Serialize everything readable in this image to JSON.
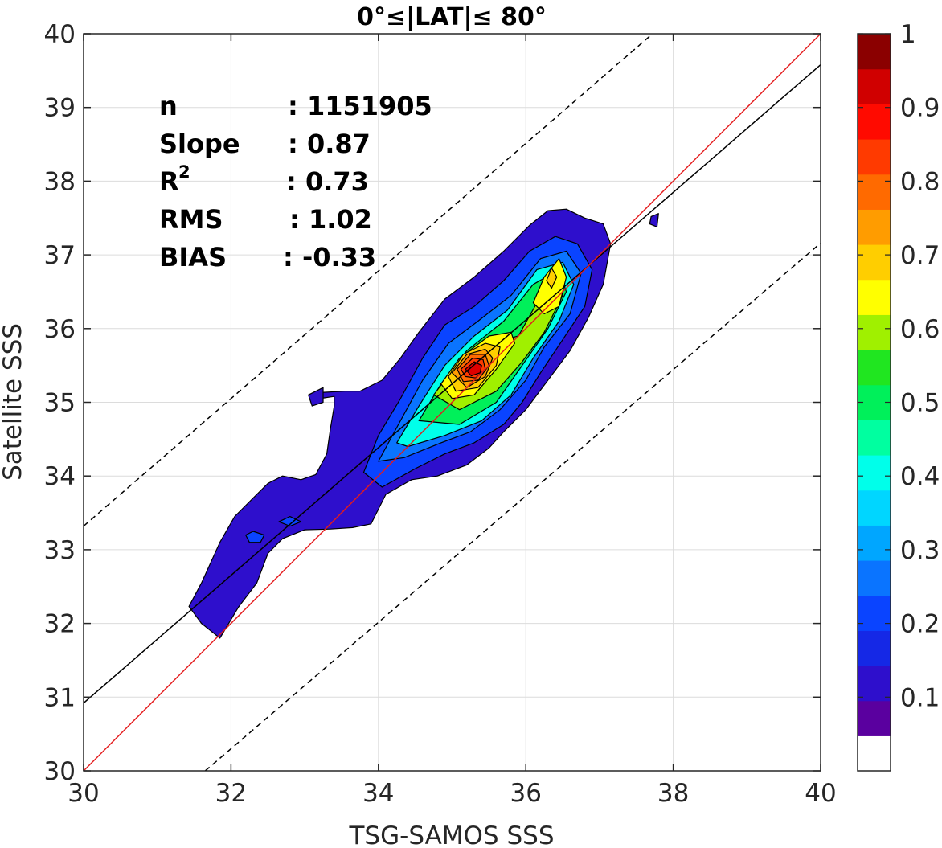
{
  "chart_data": {
    "type": "contour",
    "title": "0°≤|LAT|≤ 80°",
    "xlabel": "TSG-SAMOS SSS",
    "ylabel": "Satellite SSS",
    "xlim": [
      30,
      40
    ],
    "ylim": [
      30,
      40
    ],
    "xticks": [
      30,
      32,
      34,
      36,
      38,
      40
    ],
    "yticks": [
      30,
      31,
      32,
      33,
      34,
      35,
      36,
      37,
      38,
      39,
      40
    ],
    "grid": true,
    "stats": [
      {
        "label": "n",
        "value": ": 1151905"
      },
      {
        "label": "Slope",
        "value": ": 0.87"
      },
      {
        "label": "R",
        "sup": "2",
        "value": ": 0.73"
      },
      {
        "label": "RMS",
        "value": ": 1.02"
      },
      {
        "label": "BIAS",
        "value": ": -0.33"
      }
    ],
    "lines": {
      "identity": {
        "color": "#e41a1c",
        "p1": [
          30,
          30
        ],
        "p2": [
          40,
          40
        ]
      },
      "fit": {
        "color": "#000000",
        "p1": [
          30,
          30.92
        ],
        "p2": [
          40,
          39.58
        ]
      },
      "upper_bound": {
        "color": "#000000",
        "dash": true,
        "p1": [
          30,
          33.32
        ],
        "p2": [
          37.72,
          40
        ]
      },
      "lower_bound": {
        "color": "#000000",
        "dash": true,
        "p1": [
          31.65,
          30
        ],
        "p2": [
          40,
          37.16
        ]
      }
    },
    "density_peak": {
      "x": 35.3,
      "y": 35.45,
      "value": 0.9
    },
    "secondary_peak": {
      "x": 36.35,
      "y": 36.7,
      "value": 0.65
    },
    "colorbar": {
      "min": 0,
      "max": 1,
      "tick_labels": [
        "1",
        "0.9",
        "0.8",
        "0.7",
        "0.6",
        "0.5",
        "0.4",
        "0.3",
        "0.2",
        "0.1"
      ],
      "tick_values": [
        1,
        0.9,
        0.8,
        0.7,
        0.6,
        0.5,
        0.4,
        0.3,
        0.2,
        0.1
      ],
      "colors": [
        "#ffffff",
        "#5a009f",
        "#2e0fcc",
        "#1528e6",
        "#0a44ff",
        "#0a74ff",
        "#00a6ff",
        "#00d6ff",
        "#00ffea",
        "#00ffa0",
        "#00f05a",
        "#20e620",
        "#a0f000",
        "#ffff00",
        "#ffce00",
        "#ff9c00",
        "#ff6a00",
        "#ff3a00",
        "#ff0a00",
        "#d00000",
        "#8b0000"
      ]
    },
    "contours": [
      {
        "level": 0.05,
        "color": "#2e0fcc",
        "points": [
          [
            31.43,
            32.23
          ],
          [
            31.6,
            32.55
          ],
          [
            31.85,
            33.1
          ],
          [
            32.05,
            33.45
          ],
          [
            32.3,
            33.7
          ],
          [
            32.5,
            33.9
          ],
          [
            32.7,
            34.0
          ],
          [
            32.95,
            33.95
          ],
          [
            33.15,
            34.02
          ],
          [
            33.3,
            34.3
          ],
          [
            33.35,
            34.65
          ],
          [
            33.4,
            34.95
          ],
          [
            33.4,
            35.08
          ],
          [
            33.2,
            35.05
          ],
          [
            33.15,
            35.13
          ],
          [
            33.55,
            35.15
          ],
          [
            33.75,
            35.15
          ],
          [
            34.05,
            35.3
          ],
          [
            34.3,
            35.6
          ],
          [
            34.55,
            35.95
          ],
          [
            34.9,
            36.4
          ],
          [
            35.3,
            36.7
          ],
          [
            35.7,
            37.05
          ],
          [
            36.05,
            37.4
          ],
          [
            36.3,
            37.6
          ],
          [
            36.55,
            37.62
          ],
          [
            36.8,
            37.5
          ],
          [
            37.05,
            37.42
          ],
          [
            37.15,
            37.15
          ],
          [
            37.05,
            36.6
          ],
          [
            36.85,
            36.15
          ],
          [
            36.6,
            35.7
          ],
          [
            36.3,
            35.3
          ],
          [
            36.0,
            34.9
          ],
          [
            35.7,
            34.6
          ],
          [
            35.5,
            34.38
          ],
          [
            35.2,
            34.15
          ],
          [
            34.8,
            34.0
          ],
          [
            34.45,
            33.95
          ],
          [
            34.1,
            33.75
          ],
          [
            33.9,
            33.35
          ],
          [
            33.65,
            33.3
          ],
          [
            33.35,
            33.28
          ],
          [
            33.0,
            33.27
          ],
          [
            32.7,
            33.15
          ],
          [
            32.5,
            32.95
          ],
          [
            32.35,
            32.55
          ],
          [
            32.1,
            32.22
          ],
          [
            31.85,
            31.8
          ],
          [
            31.6,
            32.0
          ],
          [
            31.43,
            32.23
          ]
        ]
      },
      {
        "level": 0.05,
        "color": "#2e0fcc",
        "points": [
          [
            33.05,
            35.1
          ],
          [
            33.25,
            35.2
          ],
          [
            33.25,
            35.0
          ],
          [
            33.1,
            34.95
          ],
          [
            33.05,
            35.1
          ]
        ]
      },
      {
        "level": 0.05,
        "color": "#2e0fcc",
        "points": [
          [
            37.7,
            37.52
          ],
          [
            37.8,
            37.56
          ],
          [
            37.78,
            37.38
          ],
          [
            37.68,
            37.42
          ],
          [
            37.7,
            37.52
          ]
        ]
      },
      {
        "level": 0.15,
        "color": "#0a44ff",
        "points": [
          [
            33.8,
            34.05
          ],
          [
            34.0,
            34.55
          ],
          [
            34.3,
            35.05
          ],
          [
            34.6,
            35.6
          ],
          [
            34.9,
            36.05
          ],
          [
            35.3,
            36.3
          ],
          [
            35.7,
            36.65
          ],
          [
            36.05,
            37.05
          ],
          [
            36.4,
            37.25
          ],
          [
            36.7,
            37.15
          ],
          [
            36.9,
            36.8
          ],
          [
            36.8,
            36.3
          ],
          [
            36.5,
            35.85
          ],
          [
            36.2,
            35.4
          ],
          [
            35.95,
            35.0
          ],
          [
            35.7,
            34.7
          ],
          [
            35.3,
            34.45
          ],
          [
            34.9,
            34.3
          ],
          [
            34.5,
            34.1
          ],
          [
            34.05,
            33.85
          ],
          [
            33.8,
            34.05
          ]
        ]
      },
      {
        "level": 0.15,
        "color": "#0a44ff",
        "points": [
          [
            32.2,
            33.2
          ],
          [
            32.3,
            33.25
          ],
          [
            32.45,
            33.2
          ],
          [
            32.4,
            33.1
          ],
          [
            32.25,
            33.1
          ],
          [
            32.2,
            33.2
          ]
        ]
      },
      {
        "level": 0.15,
        "color": "#0a44ff",
        "points": [
          [
            32.65,
            33.38
          ],
          [
            32.8,
            33.45
          ],
          [
            32.95,
            33.38
          ],
          [
            32.8,
            33.32
          ],
          [
            32.65,
            33.38
          ]
        ]
      },
      {
        "level": 0.25,
        "color": "#0a74ff",
        "points": [
          [
            34.0,
            34.2
          ],
          [
            34.3,
            34.75
          ],
          [
            34.6,
            35.3
          ],
          [
            34.95,
            35.8
          ],
          [
            35.35,
            36.1
          ],
          [
            35.8,
            36.45
          ],
          [
            36.2,
            36.95
          ],
          [
            36.55,
            37.05
          ],
          [
            36.75,
            36.75
          ],
          [
            36.6,
            36.2
          ],
          [
            36.25,
            35.75
          ],
          [
            36.0,
            35.3
          ],
          [
            35.65,
            34.9
          ],
          [
            35.25,
            34.6
          ],
          [
            34.85,
            34.45
          ],
          [
            34.35,
            34.25
          ],
          [
            34.0,
            34.2
          ]
        ]
      },
      {
        "level": 0.35,
        "color": "#00ffea",
        "points": [
          [
            34.25,
            34.45
          ],
          [
            34.55,
            34.95
          ],
          [
            34.9,
            35.5
          ],
          [
            35.3,
            35.9
          ],
          [
            35.75,
            36.25
          ],
          [
            36.15,
            36.8
          ],
          [
            36.5,
            36.9
          ],
          [
            36.65,
            36.6
          ],
          [
            36.45,
            36.1
          ],
          [
            36.1,
            35.6
          ],
          [
            35.8,
            35.1
          ],
          [
            35.4,
            34.75
          ],
          [
            34.9,
            34.55
          ],
          [
            34.4,
            34.4
          ],
          [
            34.25,
            34.45
          ]
        ]
      },
      {
        "level": 0.45,
        "color": "#00f05a",
        "points": [
          [
            34.55,
            34.75
          ],
          [
            34.85,
            35.25
          ],
          [
            35.2,
            35.7
          ],
          [
            35.7,
            36.1
          ],
          [
            36.1,
            36.6
          ],
          [
            36.45,
            36.8
          ],
          [
            36.55,
            36.5
          ],
          [
            36.3,
            36.0
          ],
          [
            35.95,
            35.5
          ],
          [
            35.6,
            35.0
          ],
          [
            35.1,
            34.7
          ],
          [
            34.55,
            34.75
          ]
        ]
      },
      {
        "level": 0.55,
        "color": "#a0f000",
        "points": [
          [
            34.75,
            35.1
          ],
          [
            35.05,
            35.5
          ],
          [
            35.5,
            35.8
          ],
          [
            35.9,
            35.9
          ],
          [
            36.15,
            36.35
          ],
          [
            36.4,
            36.65
          ],
          [
            36.5,
            36.45
          ],
          [
            36.25,
            35.95
          ],
          [
            35.95,
            35.55
          ],
          [
            35.6,
            35.15
          ],
          [
            35.1,
            34.9
          ],
          [
            34.75,
            35.1
          ]
        ]
      },
      {
        "level": 0.62,
        "color": "#ffff00",
        "points": [
          [
            34.85,
            35.25
          ],
          [
            35.1,
            35.6
          ],
          [
            35.5,
            35.9
          ],
          [
            35.8,
            35.95
          ],
          [
            35.85,
            35.8
          ],
          [
            35.6,
            35.45
          ],
          [
            35.3,
            35.1
          ],
          [
            35.0,
            35.05
          ],
          [
            34.85,
            35.25
          ]
        ]
      },
      {
        "level": 0.62,
        "color": "#ffff00",
        "points": [
          [
            36.1,
            36.35
          ],
          [
            36.25,
            36.7
          ],
          [
            36.45,
            36.95
          ],
          [
            36.55,
            36.7
          ],
          [
            36.45,
            36.3
          ],
          [
            36.25,
            36.2
          ],
          [
            36.1,
            36.35
          ]
        ]
      },
      {
        "level": 0.68,
        "color": "#ffce00",
        "points": [
          [
            34.95,
            35.35
          ],
          [
            35.15,
            35.65
          ],
          [
            35.45,
            35.8
          ],
          [
            35.65,
            35.75
          ],
          [
            35.6,
            35.5
          ],
          [
            35.35,
            35.2
          ],
          [
            35.05,
            35.15
          ],
          [
            34.95,
            35.35
          ]
        ]
      },
      {
        "level": 0.68,
        "color": "#ffce00",
        "points": [
          [
            36.28,
            36.65
          ],
          [
            36.35,
            36.82
          ],
          [
            36.42,
            36.7
          ],
          [
            36.35,
            36.55
          ],
          [
            36.28,
            36.65
          ]
        ]
      },
      {
        "level": 0.75,
        "color": "#ff9c00",
        "points": [
          [
            35.0,
            35.4
          ],
          [
            35.2,
            35.65
          ],
          [
            35.45,
            35.72
          ],
          [
            35.55,
            35.6
          ],
          [
            35.45,
            35.35
          ],
          [
            35.2,
            35.2
          ],
          [
            35.0,
            35.4
          ]
        ]
      },
      {
        "level": 0.8,
        "color": "#ff6a00",
        "points": [
          [
            35.07,
            35.45
          ],
          [
            35.25,
            35.65
          ],
          [
            35.45,
            35.65
          ],
          [
            35.5,
            35.5
          ],
          [
            35.35,
            35.3
          ],
          [
            35.15,
            35.28
          ],
          [
            35.07,
            35.45
          ]
        ]
      },
      {
        "level": 0.85,
        "color": "#ff3a00",
        "points": [
          [
            35.12,
            35.45
          ],
          [
            35.28,
            35.6
          ],
          [
            35.42,
            35.58
          ],
          [
            35.45,
            35.45
          ],
          [
            35.32,
            35.33
          ],
          [
            35.18,
            35.35
          ],
          [
            35.12,
            35.45
          ]
        ]
      },
      {
        "level": 0.9,
        "color": "#e00000",
        "points": [
          [
            35.18,
            35.45
          ],
          [
            35.3,
            35.55
          ],
          [
            35.4,
            35.5
          ],
          [
            35.38,
            35.4
          ],
          [
            35.26,
            35.36
          ],
          [
            35.18,
            35.45
          ]
        ]
      }
    ]
  }
}
